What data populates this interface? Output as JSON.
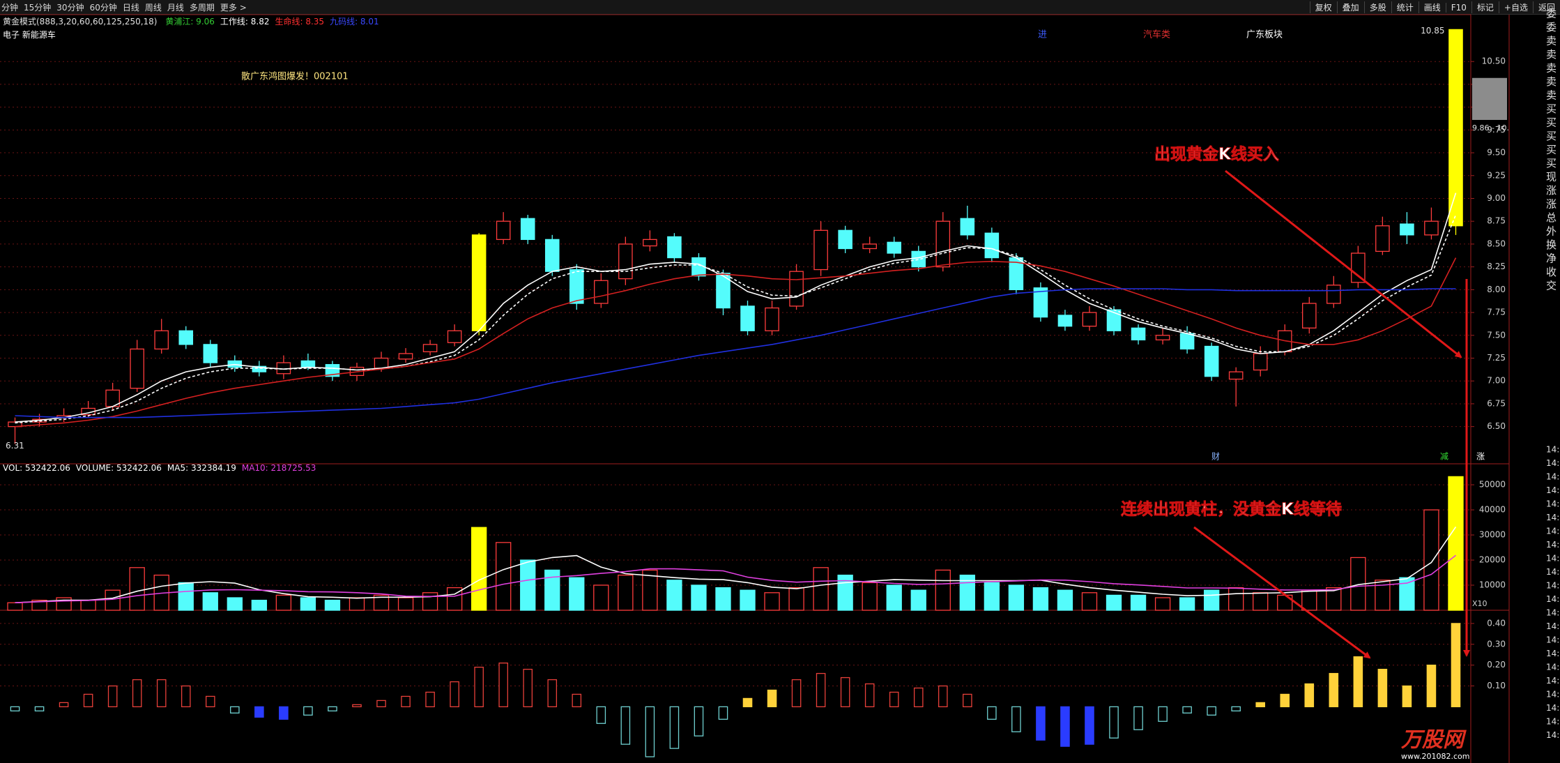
{
  "toolbar": {
    "periods": [
      "分钟",
      "15分钟",
      "30分钟",
      "60分钟",
      "日线",
      "周线",
      "月线",
      "多周期",
      "更多 >"
    ],
    "buttons": [
      "复权",
      "叠加",
      "多股",
      "统计",
      "画线",
      "F10",
      "标记",
      "+自选",
      "返回"
    ]
  },
  "quote_labels": [
    "委",
    "委",
    "卖",
    "卖",
    "卖",
    "卖",
    "卖",
    "买",
    "买",
    "买",
    "买",
    "买",
    "现",
    "涨",
    "涨",
    "总",
    "外",
    "换",
    "净",
    "收",
    "交"
  ],
  "time_labels": [
    "14:",
    "14:",
    "14:",
    "14:",
    "14:",
    "14:",
    "14:",
    "14:",
    "14:",
    "14:",
    "14:",
    "14:",
    "14:",
    "14:",
    "14:",
    "14:",
    "14:",
    "14:",
    "14:",
    "14:",
    "14:",
    "14:"
  ],
  "watermark": {
    "name": "万股网",
    "url": "www.201082.com"
  },
  "chart_data": [
    {
      "type": "candlestick",
      "indicator": "黄金模式(888,3,20,60,60,125,250,18)",
      "indicator_labels": [
        {
          "text": "黄浦江: 9.06",
          "color": "#33cc33"
        },
        {
          "text": "工作线: 8.82",
          "color": "#ffffff"
        },
        {
          "text": "生命线: 8.35",
          "color": "#ff3030"
        },
        {
          "text": "九码线: 8.01",
          "color": "#3a48ff"
        }
      ],
      "sector": "电子 新能源车",
      "open": [
        6.5,
        6.55,
        6.6,
        6.63,
        6.72,
        6.92,
        7.35,
        7.55,
        7.4,
        7.22,
        7.16,
        7.08,
        7.22,
        7.18,
        7.06,
        7.14,
        7.24,
        7.32,
        7.42,
        7.55,
        8.55,
        8.78,
        8.55,
        8.22,
        7.85,
        8.12,
        8.48,
        8.58,
        8.35,
        8.18,
        7.82,
        7.55,
        7.82,
        8.22,
        8.65,
        8.45,
        8.52,
        8.42,
        8.25,
        8.78,
        8.62,
        8.35,
        8.02,
        7.72,
        7.6,
        7.78,
        7.58,
        7.45,
        7.52,
        7.38,
        7.02,
        7.12,
        7.32,
        7.58,
        7.85,
        8.08,
        8.42,
        8.72,
        8.6,
        8.7
      ],
      "high": [
        6.6,
        6.64,
        6.7,
        6.78,
        6.98,
        7.45,
        7.68,
        7.6,
        7.45,
        7.28,
        7.22,
        7.28,
        7.3,
        7.22,
        7.2,
        7.32,
        7.36,
        7.45,
        7.62,
        8.62,
        8.85,
        8.82,
        8.6,
        8.28,
        8.18,
        8.58,
        8.65,
        8.62,
        8.4,
        8.22,
        7.88,
        7.88,
        8.28,
        8.75,
        8.7,
        8.58,
        8.58,
        8.48,
        8.85,
        8.92,
        8.68,
        8.4,
        8.08,
        7.78,
        7.82,
        7.82,
        7.62,
        7.58,
        7.6,
        7.42,
        7.15,
        7.38,
        7.62,
        7.92,
        8.15,
        8.48,
        8.8,
        8.85,
        8.9,
        10.85
      ],
      "low": [
        6.31,
        6.5,
        6.55,
        6.6,
        6.68,
        6.88,
        7.3,
        7.35,
        7.15,
        7.1,
        7.05,
        7.02,
        7.12,
        7.0,
        7.0,
        7.1,
        7.2,
        7.28,
        7.38,
        7.5,
        8.5,
        8.5,
        8.15,
        7.78,
        7.8,
        8.05,
        8.42,
        8.3,
        8.1,
        7.72,
        7.5,
        7.5,
        7.78,
        8.15,
        8.4,
        8.4,
        8.35,
        8.2,
        8.2,
        8.55,
        8.3,
        7.95,
        7.65,
        7.55,
        7.55,
        7.5,
        7.4,
        7.4,
        7.3,
        7.0,
        6.72,
        7.05,
        7.28,
        7.52,
        7.8,
        8.02,
        8.38,
        8.5,
        8.55,
        8.6
      ],
      "close": [
        6.55,
        6.58,
        6.62,
        6.7,
        6.9,
        7.35,
        7.55,
        7.4,
        7.2,
        7.15,
        7.1,
        7.2,
        7.15,
        7.05,
        7.15,
        7.25,
        7.3,
        7.4,
        7.55,
        8.6,
        8.75,
        8.55,
        8.2,
        7.85,
        8.1,
        8.5,
        8.55,
        8.35,
        8.15,
        7.8,
        7.55,
        7.8,
        8.2,
        8.65,
        8.45,
        8.5,
        8.4,
        8.25,
        8.75,
        8.6,
        8.35,
        8.0,
        7.7,
        7.6,
        7.75,
        7.55,
        7.45,
        7.5,
        7.35,
        7.05,
        7.1,
        7.3,
        7.55,
        7.85,
        8.05,
        8.4,
        8.7,
        8.6,
        8.75,
        10.85
      ],
      "styles": [
        "up",
        "up",
        "up",
        "up",
        "up",
        "up",
        "up",
        "down",
        "down",
        "down",
        "down",
        "up",
        "down",
        "down",
        "up",
        "up",
        "up",
        "up",
        "up",
        "gold",
        "up",
        "down",
        "down",
        "down",
        "up",
        "up",
        "up",
        "down",
        "down",
        "down",
        "down",
        "up",
        "up",
        "up",
        "down",
        "up",
        "down",
        "down",
        "up",
        "down",
        "down",
        "down",
        "down",
        "down",
        "up",
        "down",
        "down",
        "up",
        "down",
        "down",
        "up",
        "up",
        "up",
        "up",
        "up",
        "up",
        "up",
        "down",
        "up",
        "gold"
      ],
      "palette": {
        "up": "#ff3c3c",
        "down": "#54fcfc",
        "gold": "#ffff00"
      },
      "hollow": [
        "up"
      ],
      "lines": [
        {
          "color": "#ffffff",
          "dash": false,
          "values": [
            6.55,
            6.57,
            6.6,
            6.65,
            6.72,
            6.85,
            7.0,
            7.1,
            7.15,
            7.18,
            7.15,
            7.13,
            7.15,
            7.14,
            7.12,
            7.14,
            7.18,
            7.25,
            7.32,
            7.55,
            7.85,
            8.05,
            8.2,
            8.25,
            8.2,
            8.22,
            8.28,
            8.3,
            8.28,
            8.15,
            7.98,
            7.9,
            7.92,
            8.05,
            8.15,
            8.25,
            8.32,
            8.35,
            8.42,
            8.48,
            8.45,
            8.35,
            8.18,
            8.0,
            7.85,
            7.75,
            7.65,
            7.58,
            7.52,
            7.45,
            7.35,
            7.3,
            7.32,
            7.4,
            7.55,
            7.75,
            7.95,
            8.1,
            8.22,
            9.06
          ]
        },
        {
          "color": "#ffffff",
          "dash": true,
          "values": [
            6.54,
            6.56,
            6.58,
            6.62,
            6.68,
            6.78,
            6.92,
            7.03,
            7.1,
            7.14,
            7.14,
            7.13,
            7.14,
            7.14,
            7.12,
            7.13,
            7.16,
            7.21,
            7.28,
            7.45,
            7.72,
            7.95,
            8.12,
            8.2,
            8.2,
            8.2,
            8.24,
            8.27,
            8.27,
            8.18,
            8.03,
            7.94,
            7.93,
            8.02,
            8.12,
            8.22,
            8.29,
            8.33,
            8.4,
            8.46,
            8.45,
            8.37,
            8.22,
            8.05,
            7.9,
            7.78,
            7.68,
            7.6,
            7.54,
            7.47,
            7.38,
            7.32,
            7.32,
            7.38,
            7.5,
            7.68,
            7.88,
            8.03,
            8.16,
            8.82
          ]
        },
        {
          "color": "#d42020",
          "dash": false,
          "values": [
            6.5,
            6.52,
            6.54,
            6.57,
            6.61,
            6.67,
            6.74,
            6.81,
            6.87,
            6.92,
            6.96,
            7.0,
            7.04,
            7.07,
            7.1,
            7.13,
            7.16,
            7.2,
            7.24,
            7.35,
            7.52,
            7.68,
            7.8,
            7.88,
            7.93,
            7.99,
            8.06,
            8.12,
            8.16,
            8.17,
            8.15,
            8.12,
            8.11,
            8.13,
            8.15,
            8.18,
            8.21,
            8.23,
            8.27,
            8.3,
            8.31,
            8.3,
            8.26,
            8.2,
            8.12,
            8.04,
            7.95,
            7.86,
            7.77,
            7.68,
            7.58,
            7.5,
            7.44,
            7.4,
            7.4,
            7.45,
            7.55,
            7.68,
            7.82,
            8.35
          ]
        },
        {
          "color": "#2030e0",
          "dash": false,
          "values": [
            6.62,
            6.61,
            6.6,
            6.6,
            6.6,
            6.6,
            6.61,
            6.62,
            6.63,
            6.64,
            6.65,
            6.66,
            6.67,
            6.68,
            6.69,
            6.7,
            6.72,
            6.74,
            6.76,
            6.8,
            6.86,
            6.92,
            6.98,
            7.03,
            7.08,
            7.13,
            7.18,
            7.23,
            7.28,
            7.32,
            7.36,
            7.4,
            7.45,
            7.5,
            7.56,
            7.62,
            7.68,
            7.74,
            7.8,
            7.86,
            7.92,
            7.96,
            7.98,
            8.0,
            8.01,
            8.01,
            8.01,
            8.01,
            8.0,
            8.0,
            7.99,
            7.99,
            7.99,
            7.99,
            7.99,
            8.0,
            8.0,
            8.0,
            8.01,
            8.01
          ]
        }
      ],
      "ylim": [
        6.1,
        10.96
      ],
      "yticks": [
        {
          "value": 6.5,
          "label": "6.50"
        },
        {
          "value": 6.75,
          "label": "6.75"
        },
        {
          "value": 7,
          "label": "7.00"
        },
        {
          "value": 7.25,
          "label": "7.25"
        },
        {
          "value": 7.5,
          "label": "7.50"
        },
        {
          "value": 7.75,
          "label": "7.75"
        },
        {
          "value": 8,
          "label": "8.00"
        },
        {
          "value": 8.25,
          "label": "8.25"
        },
        {
          "value": 8.5,
          "label": "8.50"
        },
        {
          "value": 8.75,
          "label": "8.75"
        },
        {
          "value": 9,
          "label": "9.00"
        },
        {
          "value": 9.25,
          "label": "9.25"
        },
        {
          "value": 9.5,
          "label": "9.50"
        },
        {
          "value": 9.75,
          "label": "9.75"
        },
        {
          "value": 10,
          "label": "10.00"
        },
        {
          "value": 10.25,
          "label": "10.25"
        },
        {
          "value": 10.5,
          "label": "10.50"
        }
      ],
      "grid": true,
      "annotations": [
        "进",
        "汽车类",
        "广东板块",
        "散广东鸿图爆发！002101",
        "出现黄金K线买入"
      ],
      "low_label": "6.31",
      "high_label": "10.85",
      "gap": {
        "range": [
          9.86,
          10.32
        ],
        "label": "9.86 - 10."
      },
      "events": [
        "财",
        "减",
        "涨"
      ]
    },
    {
      "type": "bar",
      "header": [
        {
          "text": "VOL: 532422.06",
          "color": "#ffffff"
        },
        {
          "text": "VOLUME: 532422.06",
          "color": "#ffffff"
        },
        {
          "text": "MA5: 332384.19",
          "color": "#ffffff"
        },
        {
          "text": "MA10: 218725.53",
          "color": "#e040e0"
        }
      ],
      "values": [
        3000,
        4000,
        5000,
        4000,
        8000,
        17000,
        14000,
        11000,
        7000,
        5000,
        4000,
        6000,
        5000,
        4000,
        5000,
        6000,
        5000,
        7000,
        9000,
        33000,
        27000,
        20000,
        16000,
        13000,
        10000,
        14000,
        16000,
        12000,
        10000,
        9000,
        8000,
        7000,
        9000,
        17000,
        14000,
        11000,
        10000,
        8000,
        16000,
        14000,
        11000,
        10000,
        9000,
        8000,
        7000,
        6000,
        6000,
        5000,
        5000,
        8000,
        9000,
        7000,
        6000,
        8000,
        9000,
        21000,
        12000,
        13000,
        40000,
        53242
      ],
      "lines": [
        {
          "color": "#ffffff",
          "dash": false,
          "values": [
            3000,
            3500,
            4000,
            4000,
            4800,
            7600,
            9600,
            10800,
            11400,
            10800,
            8200,
            6600,
            5400,
            5200,
            4800,
            5200,
            5200,
            5400,
            6400,
            12000,
            16200,
            19200,
            21000,
            21800,
            17200,
            14600,
            13800,
            13000,
            12400,
            12200,
            11000,
            9200,
            8600,
            10000,
            11000,
            11600,
            12200,
            12000,
            11800,
            11800,
            11800,
            11800,
            12000,
            10400,
            9000,
            8000,
            7200,
            6400,
            5800,
            6000,
            6600,
            6800,
            7000,
            7600,
            7800,
            10200,
            11400,
            12600,
            19000,
            33238
          ]
        },
        {
          "color": "#e040e0",
          "dash": false,
          "values": [
            3000,
            3400,
            3700,
            3900,
            4400,
            5800,
            6800,
            7500,
            8100,
            8200,
            8000,
            7800,
            7400,
            7300,
            7000,
            6500,
            5600,
            5500,
            5600,
            8100,
            10400,
            12000,
            13200,
            13800,
            14700,
            15400,
            16500,
            16500,
            16100,
            15700,
            13200,
            11900,
            11200,
            11600,
            11800,
            11300,
            10700,
            10300,
            10500,
            11000,
            11400,
            11700,
            12100,
            12000,
            11400,
            10600,
            10100,
            9500,
            8900,
            8900,
            8800,
            8400,
            8100,
            8100,
            8200,
            9600,
            10000,
            10800,
            14300,
            21873
          ]
        }
      ],
      "ylim": [
        0,
        57800
      ],
      "yticks": [
        10000,
        20000,
        30000,
        40000,
        50000
      ],
      "grid": true,
      "unit_label": "X10"
    },
    {
      "type": "bar",
      "values": [
        -0.02,
        -0.02,
        0.02,
        0.06,
        0.1,
        0.13,
        0.13,
        0.1,
        0.05,
        -0.03,
        -0.05,
        -0.06,
        -0.04,
        -0.02,
        0.01,
        0.03,
        0.05,
        0.07,
        0.12,
        0.19,
        0.21,
        0.18,
        0.13,
        0.06,
        -0.08,
        -0.18,
        -0.24,
        -0.2,
        -0.14,
        -0.06,
        0.04,
        0.08,
        0.13,
        0.16,
        0.14,
        0.11,
        0.07,
        0.09,
        0.1,
        0.06,
        -0.06,
        -0.12,
        -0.16,
        -0.19,
        -0.18,
        -0.15,
        -0.11,
        -0.07,
        -0.03,
        -0.04,
        -0.02,
        0.02,
        0.06,
        0.11,
        0.16,
        0.24,
        0.18,
        0.1,
        0.2,
        0.4
      ],
      "styles": [
        "teal",
        "teal",
        "red",
        "red",
        "red",
        "red",
        "red",
        "red",
        "red",
        "teal",
        "blue",
        "blue",
        "teal",
        "teal",
        "red",
        "red",
        "red",
        "red",
        "red",
        "red",
        "red",
        "red",
        "red",
        "red",
        "teal",
        "teal",
        "teal",
        "teal",
        "teal",
        "teal",
        "yellow",
        "yellow",
        "red",
        "red",
        "red",
        "red",
        "red",
        "red",
        "red",
        "red",
        "teal",
        "teal",
        "blue",
        "blue",
        "blue",
        "teal",
        "teal",
        "teal",
        "teal",
        "teal",
        "teal",
        "yellow",
        "yellow",
        "yellow",
        "yellow",
        "yellow",
        "yellow",
        "yellow",
        "yellow",
        "yellow"
      ],
      "palette": {
        "red": "#e8403a",
        "teal": "#6fd0d0",
        "blue": "#2a3cff",
        "yellow": "#ffd23a"
      },
      "hollow": [
        "red",
        "teal"
      ],
      "ylim": [
        -0.27,
        0.46
      ],
      "yticks": [
        {
          "value": 0.1,
          "label": "0.10"
        },
        {
          "value": 0.2,
          "label": "0.20"
        },
        {
          "value": 0.3,
          "label": "0.30"
        },
        {
          "value": 0.4,
          "label": "0.40"
        }
      ],
      "grid": true,
      "annotation": "连续出现黄柱，没黄金K线等待"
    }
  ]
}
